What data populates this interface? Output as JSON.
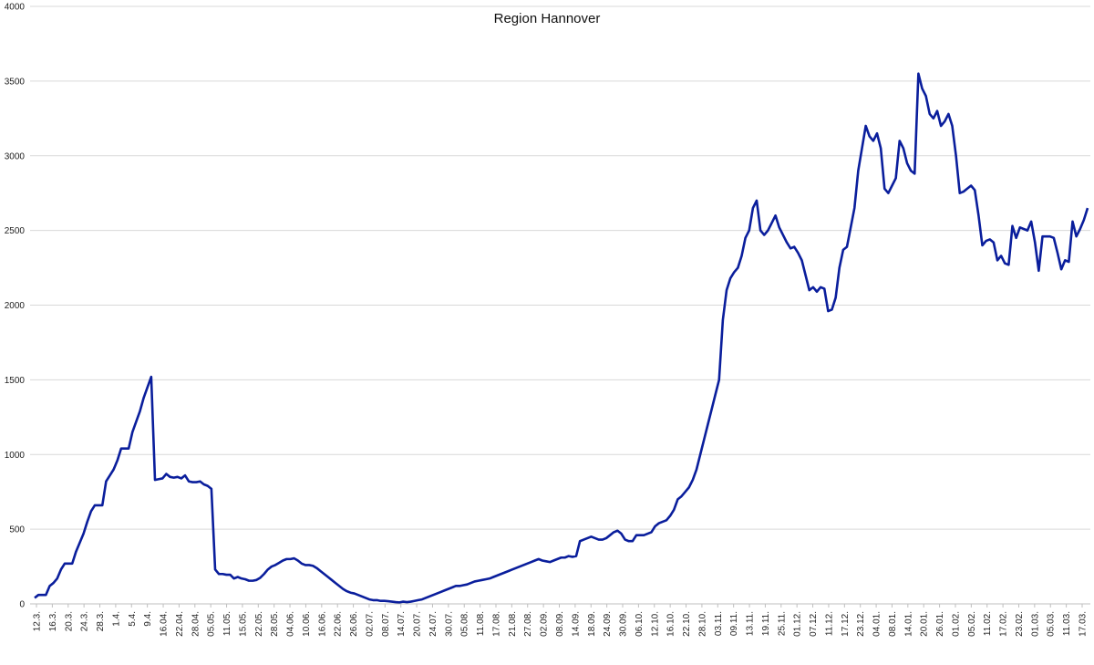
{
  "chart_data": {
    "type": "line",
    "title": "Region Hannover",
    "xlabel": "",
    "ylabel": "",
    "ylim": [
      0,
      4000
    ],
    "yticks": [
      0,
      500,
      1000,
      1500,
      2000,
      2500,
      3000,
      3500,
      4000
    ],
    "grid": true,
    "legend": "none",
    "line_color": "#0a1e9c",
    "grid_color": "#d9d9d9",
    "x_tick_labels": [
      "12.3.",
      "16.3.",
      "20.3.",
      "24.3.",
      "28.3.",
      "1.4.",
      "5.4.",
      "9.4.",
      "16.04.",
      "22.04.",
      "28.04.",
      "05.05.",
      "11.05.",
      "15.05.",
      "22.05.",
      "28.05.",
      "04.06.",
      "10.06.",
      "16.06.",
      "22.06.",
      "26.06.",
      "02.07.",
      "08.07.",
      "14.07.",
      "20.07.",
      "24.07.",
      "30.07.",
      "05.08.",
      "11.08.",
      "17.08.",
      "21.08.",
      "27.08.",
      "02.09.",
      "08.09.",
      "14.09.",
      "18.09.",
      "24.09.",
      "30.09.",
      "06.10.",
      "12.10.",
      "16.10.",
      "22.10.",
      "28.10.",
      "03.11.",
      "09.11.",
      "13.11.",
      "19.11.",
      "25.11.",
      "01.12.",
      "07.12.",
      "11.12.",
      "17.12.",
      "23.12.",
      "04.01.",
      "08.01.",
      "14.01.",
      "20.01.",
      "26.01.",
      "01.02.",
      "05.02.",
      "11.02.",
      "17.02.",
      "23.02.",
      "01.03.",
      "05.03.",
      "11.03.",
      "17.03."
    ],
    "series": [
      {
        "values": [
          40,
          60,
          60,
          60,
          120,
          140,
          170,
          230,
          270,
          270,
          270,
          350,
          410,
          470,
          550,
          620,
          660,
          660,
          660,
          820,
          860,
          900,
          960,
          1040,
          1040,
          1040,
          1150,
          1220,
          1290,
          1380,
          1450,
          1520,
          830,
          835,
          840,
          870,
          850,
          845,
          850,
          840,
          860,
          820,
          815,
          815,
          820,
          800,
          790,
          770,
          230,
          200,
          200,
          195,
          195,
          170,
          180,
          170,
          165,
          155,
          155,
          160,
          175,
          200,
          230,
          250,
          260,
          275,
          290,
          300,
          300,
          305,
          290,
          270,
          260,
          260,
          255,
          240,
          220,
          200,
          180,
          160,
          140,
          120,
          100,
          85,
          75,
          70,
          60,
          50,
          40,
          30,
          25,
          25,
          20,
          20,
          18,
          15,
          12,
          10,
          15,
          12,
          15,
          20,
          25,
          30,
          40,
          50,
          60,
          70,
          80,
          90,
          100,
          110,
          120,
          120,
          125,
          130,
          140,
          150,
          155,
          160,
          165,
          170,
          180,
          190,
          200,
          210,
          220,
          230,
          240,
          250,
          260,
          270,
          280,
          290,
          300,
          290,
          285,
          280,
          290,
          300,
          310,
          310,
          320,
          315,
          320,
          420,
          430,
          440,
          450,
          440,
          430,
          430,
          440,
          460,
          480,
          490,
          470,
          430,
          420,
          420,
          460,
          460,
          460,
          470,
          480,
          520,
          540,
          550,
          560,
          590,
          630,
          700,
          720,
          750,
          780,
          830,
          900,
          1000,
          1100,
          1200,
          1300,
          1400,
          1500,
          1900,
          2100,
          2180,
          2220,
          2250,
          2330,
          2450,
          2500,
          2650,
          2700,
          2500,
          2470,
          2500,
          2550,
          2600,
          2520,
          2470,
          2420,
          2380,
          2390,
          2350,
          2300,
          2200,
          2100,
          2120,
          2090,
          2120,
          2110,
          1960,
          1970,
          2050,
          2250,
          2370,
          2390,
          2520,
          2650,
          2900,
          3050,
          3200,
          3130,
          3100,
          3150,
          3050,
          2780,
          2750,
          2800,
          2850,
          3100,
          3050,
          2950,
          2900,
          2880,
          3550,
          3450,
          3400,
          3280,
          3250,
          3300,
          3200,
          3230,
          3280,
          3200,
          3000,
          2750,
          2760,
          2780,
          2800,
          2770,
          2600,
          2400,
          2430,
          2440,
          2420,
          2300,
          2330,
          2280,
          2270,
          2530,
          2450,
          2520,
          2510,
          2500,
          2560,
          2420,
          2230,
          2460,
          2460,
          2460,
          2450,
          2350,
          2240,
          2300,
          2290,
          2560,
          2460,
          2510,
          2570,
          2650
        ]
      }
    ]
  }
}
